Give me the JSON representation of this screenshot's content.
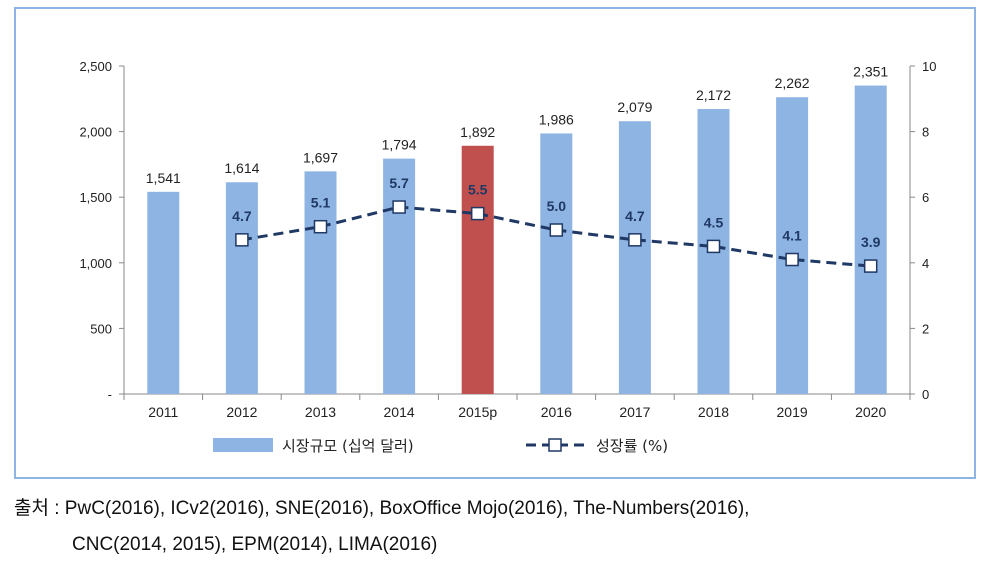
{
  "chart_data": {
    "type": "bar",
    "categories": [
      "2011",
      "2012",
      "2013",
      "2014",
      "2015p",
      "2016",
      "2017",
      "2018",
      "2019",
      "2020"
    ],
    "series": [
      {
        "name": "시장규모 (십억 달러)",
        "type": "bar",
        "axis": "left",
        "values": [
          1541,
          1614,
          1697,
          1794,
          1892,
          1986,
          2079,
          2172,
          2262,
          2351
        ],
        "labels": [
          "1,541",
          "1,614",
          "1,697",
          "1,794",
          "1,892",
          "1,986",
          "2,079",
          "2,172",
          "2,262",
          "2,351"
        ],
        "color": "#8EB4E3",
        "highlight_index": 4,
        "highlight_color": "#C0504D"
      },
      {
        "name": "성장률 (%)",
        "type": "line",
        "axis": "right",
        "values": [
          null,
          4.7,
          5.1,
          5.7,
          5.5,
          5.0,
          4.7,
          4.5,
          4.1,
          3.9
        ],
        "labels": [
          "",
          "4.7",
          "5.1",
          "5.7",
          "5.5",
          "5.0",
          "4.7",
          "4.5",
          "4.1",
          "3.9"
        ],
        "color": "#1F3864",
        "style": "dashed",
        "marker": "square-open"
      }
    ],
    "y_left": {
      "ylim": [
        0,
        2500
      ],
      "ticks": [
        "-",
        "500",
        "1,000",
        "1,500",
        "2,000",
        "2,500"
      ]
    },
    "y_right": {
      "ylim": [
        0,
        10
      ],
      "ticks": [
        "0",
        "2",
        "4",
        "6",
        "8",
        "10"
      ]
    },
    "legend_position": "bottom",
    "grid": false
  },
  "source": {
    "line1": "출처 : PwC(2016), ICv2(2016), SNE(2016), BoxOffice Mojo(2016), The-Numbers(2016),",
    "line2": "CNC(2014, 2015), EPM(2014), LIMA(2016)"
  }
}
